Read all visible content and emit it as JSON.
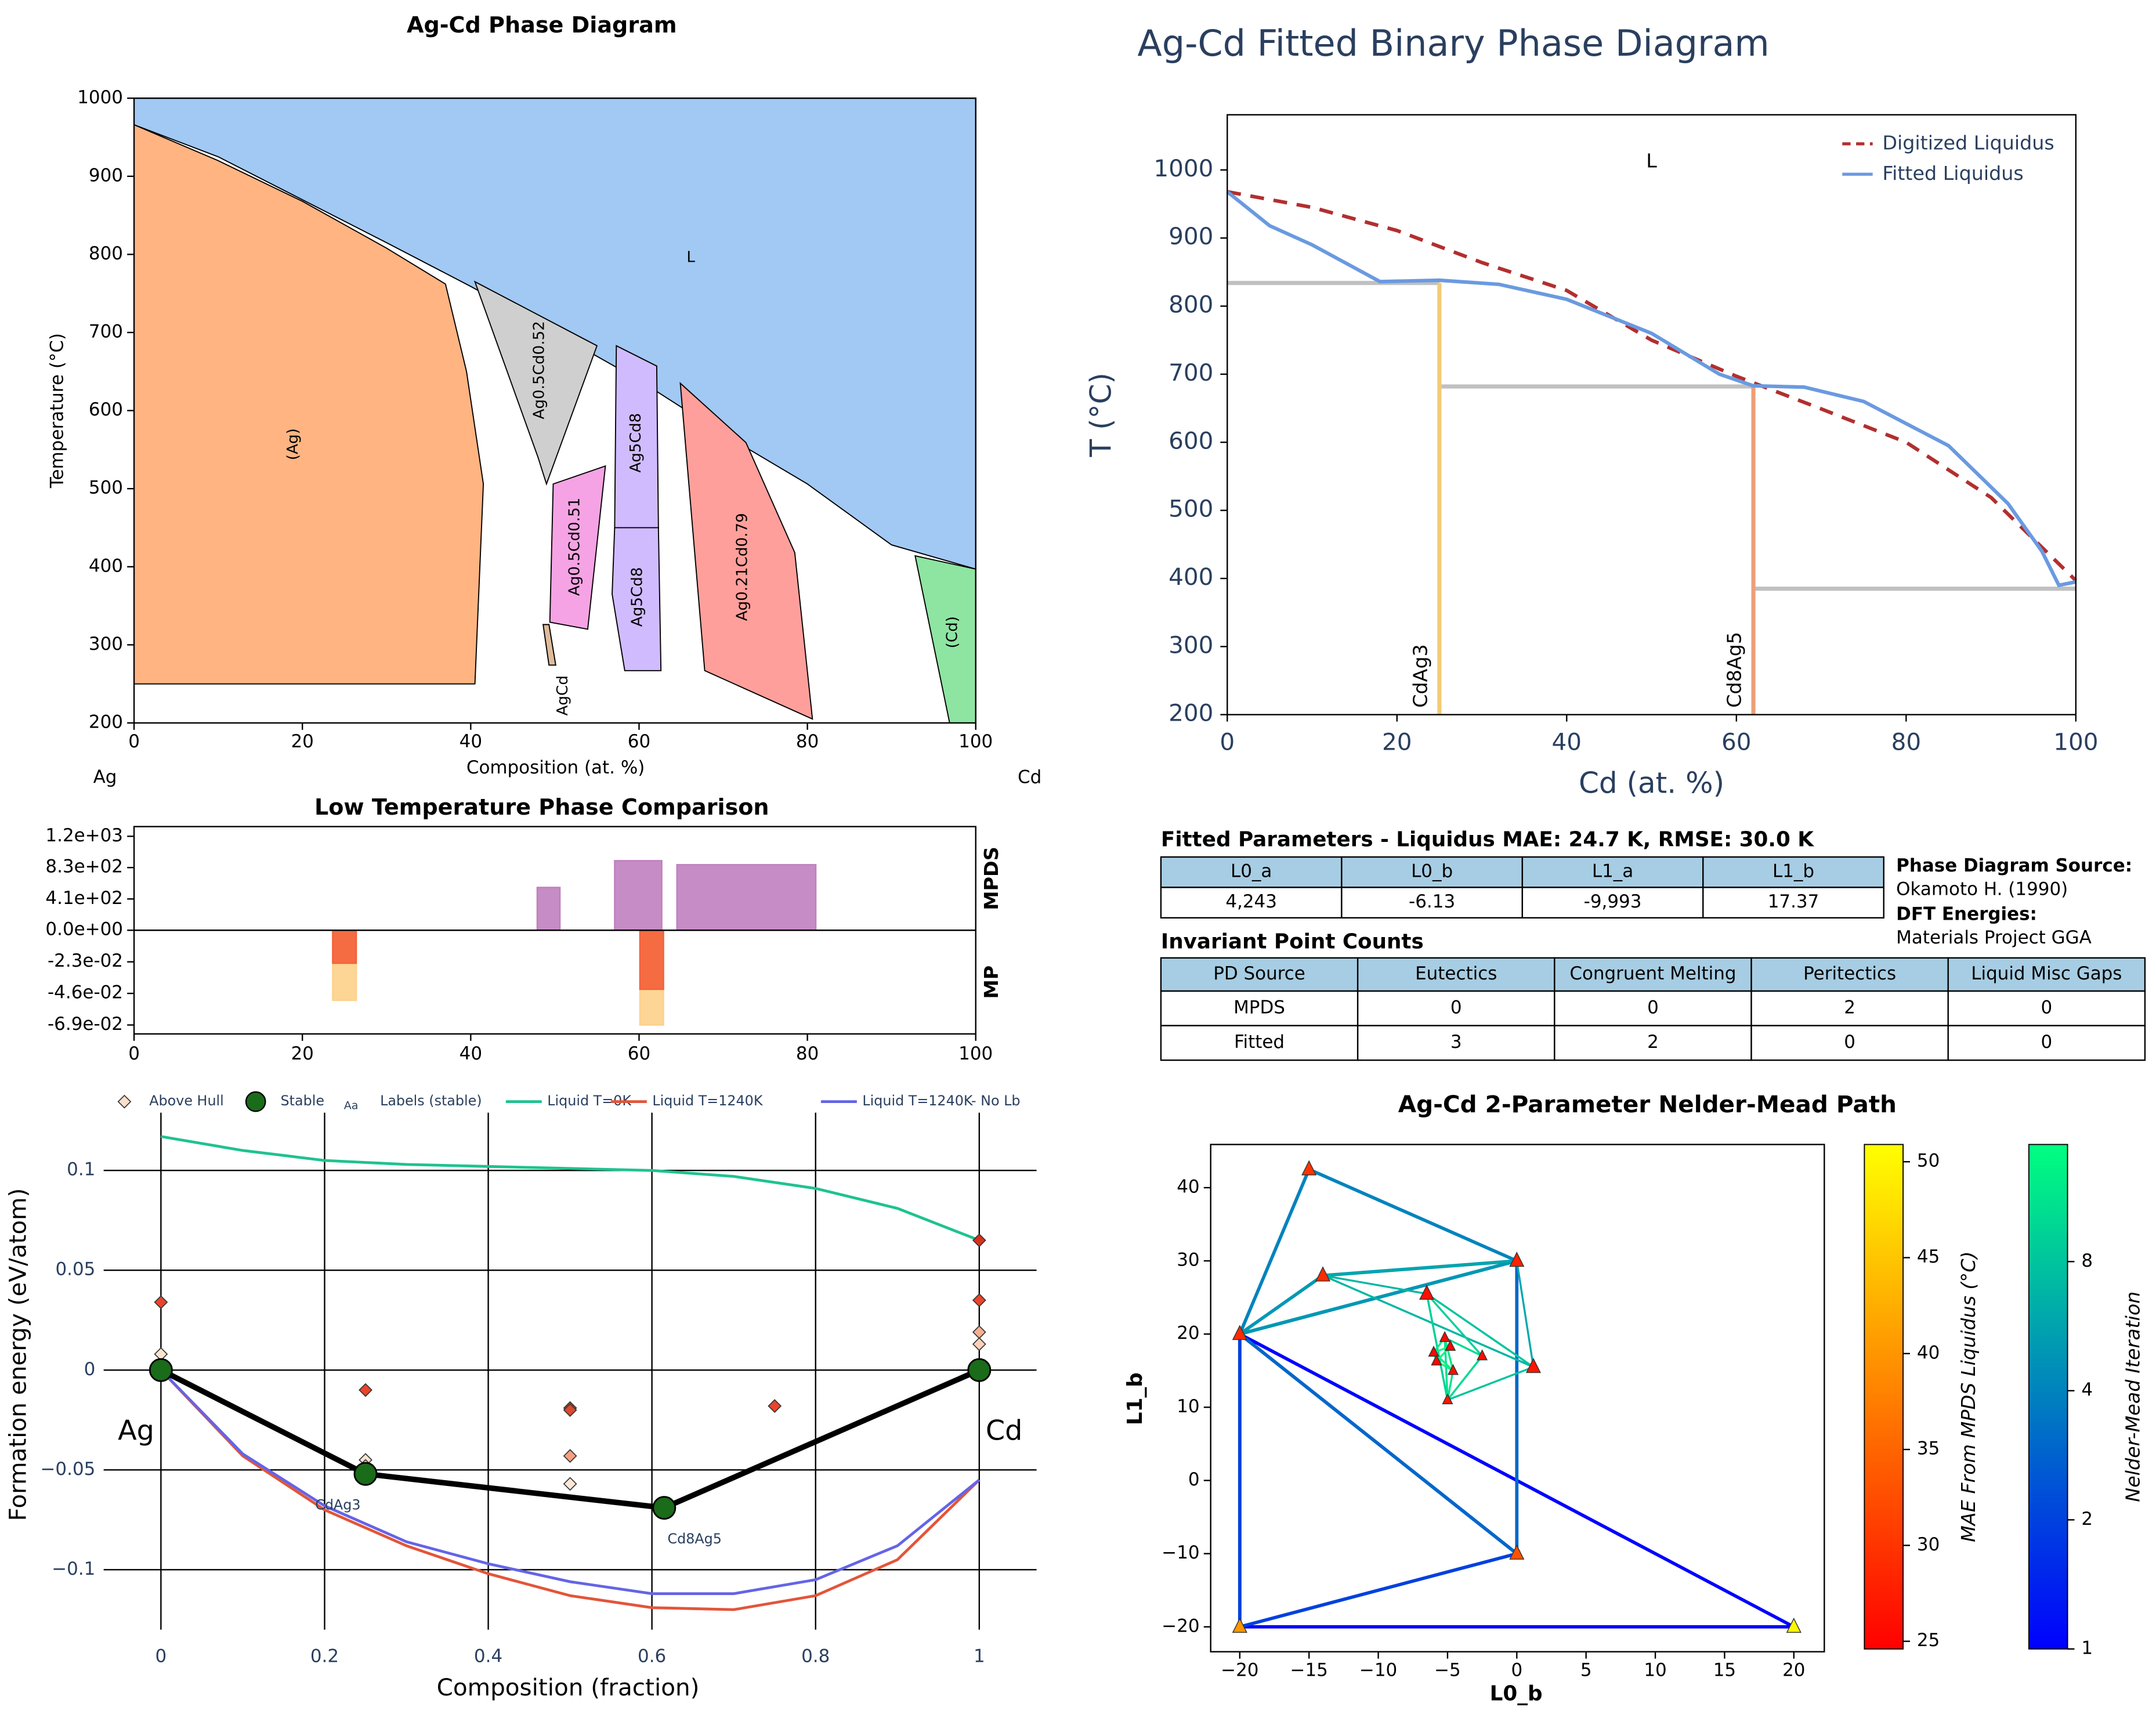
{
  "chart_data": [
    {
      "type": "phase_regions",
      "title": "Ag-Cd Phase Diagram",
      "x_label": "Composition (at. %)",
      "y_label": "Temperature (°C)",
      "end_labels": [
        "Ag",
        "Cd"
      ],
      "xlim": [
        0,
        100
      ],
      "ylim": [
        200,
        1000
      ],
      "xticks": [
        0,
        20,
        40,
        60,
        80,
        100
      ],
      "yticks": [
        200,
        300,
        400,
        500,
        600,
        700,
        800,
        900,
        1000
      ],
      "regions": [
        {
          "name": "L",
          "color": "#a1c9f4",
          "x": [
            0,
            100,
            100,
            90,
            80,
            70,
            60,
            50,
            40,
            30,
            20,
            10,
            0
          ],
          "y": [
            1000,
            1000,
            397,
            428,
            506,
            570,
            639,
            700,
            759,
            815,
            870,
            925,
            966
          ]
        },
        {
          "name": "(Ag)",
          "color": "#ffb482",
          "x": [
            0,
            10,
            20,
            30,
            37,
            39.5,
            41.5,
            40.5,
            0
          ],
          "y": [
            966,
            920,
            868,
            808,
            762,
            650,
            506,
            250,
            250
          ]
        },
        {
          "name": "Ag0.5Cd0.52",
          "color": "#cfcfcf",
          "x": [
            40.5,
            55,
            49,
            48
          ],
          "y": [
            765,
            683,
            506,
            540
          ]
        },
        {
          "name": "Ag0.5Cd0.51",
          "color": "#f5a3e4",
          "x": [
            49.8,
            56,
            53.9,
            49.4
          ],
          "y": [
            506,
            529,
            320,
            329
          ]
        },
        {
          "name": "AgCd",
          "color": "#debb9b",
          "x": [
            48.6,
            49.3,
            50.1,
            49.3
          ],
          "y": [
            326,
            326,
            274,
            274
          ]
        },
        {
          "name": "Ag5Cd8",
          "color": "#d0bbff",
          "x": [
            57.3,
            62.1,
            62.3,
            57.1
          ],
          "y": [
            683,
            657,
            450,
            450
          ]
        },
        {
          "name": "Ag5Cd8",
          "color": "#d0bbff",
          "x": [
            57.1,
            62.3,
            62.6,
            58.3,
            56.8
          ],
          "y": [
            450,
            450,
            267,
            267,
            365
          ]
        },
        {
          "name": "Ag0.21Cd0.79",
          "color": "#ff9f9b",
          "x": [
            64.9,
            72.7,
            78.5,
            80.6,
            67.8
          ],
          "y": [
            635,
            559,
            418,
            205,
            267
          ]
        },
        {
          "name": "(Cd)",
          "color": "#8de5a1",
          "x": [
            92.8,
            100,
            100,
            96.9
          ],
          "y": [
            414,
            397,
            200,
            200
          ]
        }
      ]
    },
    {
      "type": "split_bar",
      "title": "Low Temperature Phase Comparison",
      "xlim": [
        0,
        100
      ],
      "xticks": [
        0,
        20,
        40,
        60,
        80,
        100
      ],
      "panels": [
        {
          "name": "MPDS",
          "ylim": [
            0,
            1368
          ],
          "yticks": [
            {
              "value": 1240,
              "label": "1.2e+03"
            },
            {
              "value": 827,
              "label": "8.3e+02"
            },
            {
              "value": 413,
              "label": "4.1e+02"
            },
            {
              "value": 0,
              "label": "0.0e+00"
            }
          ],
          "bars": [
            {
              "x": [
                47.9,
                50.6
              ],
              "value": 565,
              "color": "#bf7fbf"
            },
            {
              "x": [
                57.1,
                62.7
              ],
              "value": 918,
              "color": "#bf7fbf"
            },
            {
              "x": [
                64.5,
                81
              ],
              "value": 865,
              "color": "#bf7fbf"
            }
          ]
        },
        {
          "name": "MP",
          "ylim": [
            -0.0755,
            0
          ],
          "yticks": [
            {
              "value": -0.023,
              "label": "-2.3e-02"
            },
            {
              "value": -0.046,
              "label": "-4.6e-02"
            },
            {
              "value": -0.069,
              "label": "-6.9e-02"
            }
          ],
          "bars": [
            {
              "x": [
                23.6,
                26.4
              ],
              "value": -0.051,
              "color": "#fdd089"
            },
            {
              "x": [
                23.6,
                26.4
              ],
              "value": -0.024,
              "color": "#f4603a"
            },
            {
              "x": [
                60.1,
                62.9
              ],
              "value": -0.069,
              "color": "#fdd089"
            },
            {
              "x": [
                60.1,
                62.9
              ],
              "value": -0.043,
              "color": "#f4603a"
            }
          ]
        }
      ]
    },
    {
      "type": "energy_hull",
      "x_label": "Composition (fraction)",
      "y_label": "Formation energy (eV/atom)",
      "xlim": [
        -0.07,
        1.07
      ],
      "ylim": [
        -0.13,
        0.14
      ],
      "xticks": [
        0,
        0.2,
        0.4,
        0.6,
        0.8,
        1
      ],
      "yticks": [
        {
          "value": -0.1,
          "label": "−0.1"
        },
        {
          "value": -0.05,
          "label": "−0.05"
        },
        0,
        0.05,
        0.1
      ],
      "grid": true,
      "series": [
        {
          "name": "Liquid T=0K",
          "color": "#1fc28f",
          "x": [
            0,
            0.1,
            0.2,
            0.3,
            0.4,
            0.5,
            0.6,
            0.7,
            0.8,
            0.9,
            1
          ],
          "y": [
            0.117,
            0.11,
            0.105,
            0.103,
            0.102,
            0.101,
            0.1,
            0.097,
            0.091,
            0.081,
            0.065
          ]
        },
        {
          "name": "Liquid T=1240K",
          "color": "#e2553a",
          "x": [
            0,
            0.1,
            0.2,
            0.3,
            0.4,
            0.5,
            0.6,
            0.7,
            0.8,
            0.9,
            1
          ],
          "y": [
            0,
            -0.043,
            -0.07,
            -0.088,
            -0.102,
            -0.113,
            -0.119,
            -0.12,
            -0.113,
            -0.095,
            -0.055
          ]
        },
        {
          "name": "Liquid T=1240K- No Lb",
          "color": "#6464e6",
          "x": [
            0,
            0.1,
            0.2,
            0.3,
            0.4,
            0.5,
            0.6,
            0.7,
            0.8,
            0.9,
            1
          ],
          "y": [
            0,
            -0.042,
            -0.068,
            -0.086,
            -0.097,
            -0.106,
            -0.112,
            -0.112,
            -0.105,
            -0.088,
            -0.055
          ]
        }
      ],
      "above_hull": {
        "name": "Above Hull",
        "legend_color": "#fbe0cc",
        "x": [
          0,
          0,
          0.25,
          0.25,
          0.25,
          0.5,
          0.5,
          0.5,
          0.5,
          0.75,
          1,
          1,
          1,
          1
        ],
        "y": [
          0.034,
          0.008,
          -0.01,
          -0.045,
          -0.048,
          -0.019,
          -0.02,
          -0.043,
          -0.057,
          -0.018,
          0.065,
          0.035,
          0.019,
          0.013
        ],
        "colors": [
          "#e8452c",
          "#fbe5d0",
          "#e8452c",
          "#fbe5d0",
          "#f5c0a0",
          "#e8452c",
          "#d94a30",
          "#f7a080",
          "#fde8d8",
          "#e8452c",
          "#d8301c",
          "#e8452c",
          "#f5b090",
          "#fbd0b8"
        ]
      },
      "stable": {
        "name": "Stable",
        "color": "#1a6b1a",
        "x": [
          0,
          0.25,
          0.615,
          1
        ],
        "y": [
          0,
          -0.052,
          -0.069,
          0
        ],
        "labels": [
          "Ag",
          "CdAg3",
          "Cd8Ag5",
          "Cd"
        ]
      },
      "stable_labels_legend": {
        "name": "Labels (stable)",
        "marker": "Aa"
      }
    },
    {
      "type": "line",
      "title": "Ag-Cd Fitted Binary Phase Diagram",
      "x_label": "Cd (at. %)",
      "y_label": "T (°C)",
      "xlim": [
        0,
        100
      ],
      "ylim": [
        200,
        1081
      ],
      "xticks": [
        0,
        20,
        40,
        60,
        80,
        100
      ],
      "yticks": [
        200,
        300,
        400,
        500,
        600,
        700,
        800,
        900,
        1000
      ],
      "legend": "upper right",
      "series": [
        {
          "name": "Digitized Liquidus",
          "color": "#b22f2f",
          "dash": true,
          "x": [
            0,
            10,
            20,
            30,
            40,
            50,
            60,
            70,
            80,
            90,
            100
          ],
          "y": [
            968,
            945,
            911,
            864,
            823,
            750,
            697,
            649,
            600,
            519,
            397
          ]
        },
        {
          "name": "Fitted Liquidus",
          "color": "#6a9ae0",
          "x": [
            0,
            5,
            10,
            18,
            25,
            32,
            40,
            50,
            58,
            62,
            68,
            75,
            85,
            92,
            96,
            98,
            100
          ],
          "y": [
            968,
            918,
            890,
            836,
            838,
            832,
            810,
            760,
            700,
            683,
            681,
            660,
            595,
            510,
            440,
            390,
            395
          ]
        }
      ],
      "hline_color": "#c0c0c0",
      "hlines": [
        {
          "y": 834,
          "x": [
            0,
            25
          ]
        },
        {
          "y": 682,
          "x": [
            25,
            62
          ]
        },
        {
          "y": 385,
          "x": [
            62,
            100
          ]
        }
      ],
      "compounds": [
        {
          "name": "CdAg3",
          "x": 25,
          "y": [
            200,
            834
          ],
          "color": "#f2cb75"
        },
        {
          "name": "Cd8Ag5",
          "x": 62,
          "y": [
            200,
            682
          ],
          "color": "#ed9f78"
        }
      ],
      "annotations": [
        {
          "text": "L",
          "x": 50,
          "y": 1012
        }
      ]
    },
    {
      "type": "simplex_path",
      "title": "Ag-Cd 2-Parameter Nelder-Mead Path",
      "x_label": "L0_b",
      "y_label": "L1_b",
      "xlim": [
        -22.1,
        22.2
      ],
      "ylim": [
        -23.4,
        45.9
      ],
      "xticks": [
        {
          "value": -20,
          "label": "−20"
        },
        {
          "value": -15,
          "label": "−15"
        },
        {
          "value": -10,
          "label": "−10"
        },
        {
          "value": -5,
          "label": "−5"
        },
        0,
        5,
        10,
        15,
        20
      ],
      "yticks": [
        {
          "value": -20,
          "label": "−20"
        },
        {
          "value": -10,
          "label": "−10"
        },
        0,
        10,
        20,
        30,
        40
      ],
      "points": {
        "x": [
          -20,
          20,
          -20,
          0,
          0,
          -15,
          -14,
          1.2,
          -6.5,
          -5,
          -2.5,
          -5.2,
          -4.6,
          -6,
          -5.8,
          -4.8
        ],
        "y": [
          -20,
          -20,
          20,
          -10,
          30,
          42.5,
          28,
          15.5,
          25.5,
          11,
          17,
          19.5,
          15,
          17.5,
          16.3,
          18.3
        ],
        "mae": [
          40,
          50,
          29,
          33,
          28,
          30,
          29,
          27,
          26,
          27,
          26,
          25.5,
          26,
          25.5,
          25.2,
          25
        ]
      },
      "simplices": {
        "vertices": [
          [
            0,
            1,
            2
          ],
          [
            0,
            2,
            3
          ],
          [
            2,
            3,
            4
          ],
          [
            2,
            4,
            5
          ],
          [
            2,
            4,
            6
          ],
          [
            4,
            6,
            7
          ],
          [
            6,
            7,
            8
          ],
          [
            7,
            8,
            9
          ],
          [
            8,
            9,
            10
          ],
          [
            9,
            10,
            11
          ],
          [
            9,
            11,
            12
          ],
          [
            11,
            12,
            13
          ],
          [
            12,
            13,
            14
          ],
          [
            13,
            14,
            15
          ]
        ],
        "iteration": [
          1,
          2,
          3,
          4,
          5,
          6,
          7,
          8,
          9,
          10,
          11,
          12,
          13,
          14
        ]
      },
      "colorbars": [
        {
          "label": "MAE From MPDS Liquidus (°C)",
          "colormap": "autumn",
          "lim": [
            24.6,
            50.9
          ],
          "ticks": [
            25,
            30,
            35,
            40,
            45,
            50
          ]
        },
        {
          "label": "Nelder-Mead Iteration",
          "colormap": "winter",
          "log": true,
          "lim": [
            1,
            15
          ],
          "ticks": [
            1,
            2,
            4,
            8
          ]
        }
      ]
    }
  ],
  "tables": {
    "fitted_parameters": {
      "title": "Fitted Parameters - Liquidus MAE: 24.7 K, RMSE: 30.0 K",
      "header": [
        "L0_a",
        "L0_b",
        "L1_a",
        "L1_b"
      ],
      "rows": [
        [
          "4,243",
          "-6.13",
          "-9,993",
          "17.37"
        ]
      ]
    },
    "invariant_points": {
      "title": "Invariant Point Counts",
      "header": [
        "PD Source",
        "Eutectics",
        "Congruent Melting",
        "Peritectics",
        "Liquid Misc Gaps"
      ],
      "rows": [
        [
          "MPDS",
          0,
          0,
          2,
          0
        ],
        [
          "Fitted",
          3,
          2,
          0,
          0
        ]
      ]
    }
  },
  "sources": [
    {
      "label": "Phase Diagram Source:",
      "value": "Okamoto H. (1990)"
    },
    {
      "label": "DFT Energies:",
      "value": "Materials Project GGA"
    }
  ]
}
